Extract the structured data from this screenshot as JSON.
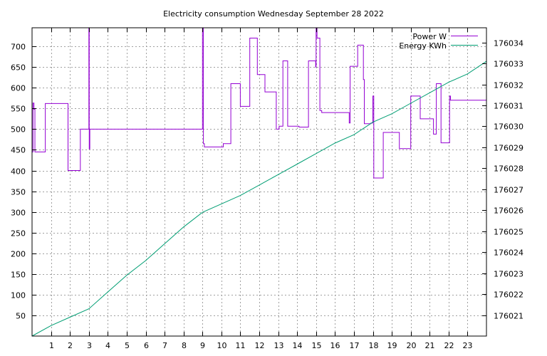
{
  "chart_data": {
    "type": "line",
    "title": "Electricity consumption Wednesday September 28 2022",
    "xlabel": "",
    "ylabel": "",
    "grid": true,
    "legend_position": "top-right",
    "x_range": [
      0,
      24
    ],
    "x_ticks": [
      1,
      2,
      3,
      4,
      5,
      6,
      7,
      8,
      9,
      10,
      11,
      12,
      13,
      14,
      15,
      16,
      17,
      18,
      19,
      20,
      21,
      22,
      23
    ],
    "y_left": {
      "range": [
        0,
        745
      ],
      "ticks": [
        50,
        100,
        150,
        200,
        250,
        300,
        350,
        400,
        450,
        500,
        550,
        600,
        650,
        700
      ]
    },
    "y_right": {
      "range": [
        176020.0,
        176034.7
      ],
      "ticks": [
        176021,
        176022,
        176023,
        176024,
        176025,
        176026,
        176027,
        176028,
        176029,
        176030,
        176031,
        176032,
        176033,
        176034
      ]
    },
    "series": [
      {
        "name": "Power W",
        "axis": "left",
        "color": "#9400d3",
        "step": true,
        "x": [
          0,
          0.05,
          0.1,
          0.15,
          0.7,
          1.9,
          2.55,
          3.0,
          3.02,
          3.05,
          3.08,
          9.0,
          9.05,
          9.1,
          10.1,
          10.5,
          11.0,
          11.5,
          11.9,
          12.3,
          12.9,
          13.05,
          13.25,
          13.5,
          14.1,
          14.6,
          14.98,
          15.0,
          15.05,
          15.2,
          15.3,
          16.75,
          16.8,
          17.2,
          17.5,
          17.55,
          17.9,
          18.0,
          18.05,
          18.5,
          18.55,
          19.0,
          19.4,
          20.0,
          20.5,
          21.0,
          21.2,
          21.35,
          21.6,
          22.0,
          22.05,
          22.1,
          22.3,
          23.9,
          24.0
        ],
        "y": [
          445,
          563,
          548,
          445,
          562,
          400,
          500,
          745,
          452,
          500,
          500,
          745,
          465,
          457,
          465,
          610,
          555,
          720,
          632,
          590,
          500,
          507,
          665,
          507,
          505,
          665,
          650,
          745,
          720,
          545,
          540,
          515,
          652,
          703,
          620,
          513,
          515,
          580,
          382,
          382,
          492,
          492,
          453,
          580,
          525,
          525,
          488,
          610,
          467,
          467,
          580,
          570,
          570,
          570,
          513
        ]
      },
      {
        "name": "Energy KWh",
        "axis": "right",
        "color": "#009e73",
        "step": false,
        "x": [
          0,
          1,
          2,
          3,
          4,
          5,
          6,
          7,
          8,
          9,
          10,
          11,
          12,
          13,
          14,
          15,
          16,
          17,
          18,
          19,
          20,
          21,
          22,
          23,
          24
        ],
        "y": [
          176020.0,
          176020.5,
          176020.9,
          176021.3,
          176022.1,
          176022.9,
          176023.6,
          176024.4,
          176025.2,
          176025.9,
          176026.3,
          176026.7,
          176027.2,
          176027.7,
          176028.2,
          176028.7,
          176029.2,
          176029.6,
          176030.2,
          176030.6,
          176031.1,
          176031.6,
          176032.1,
          176032.5,
          176033.1
        ]
      }
    ]
  }
}
